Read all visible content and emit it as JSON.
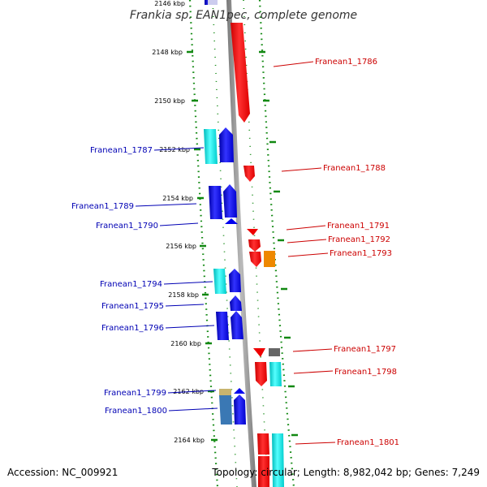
{
  "title": "Frankia sp. EAN1pec, complete genome",
  "accession": "Accession: NC_009921",
  "topology": "Topology: circular; Length: 8,982,042 bp; Genes: 7,249",
  "kbp_labels": [
    "2146 kbp",
    "2148 kbp",
    "2150 kbp",
    "2152 kbp",
    "2154 kbp",
    "2156 kbp",
    "2158 kbp",
    "2160 kbp",
    "2162 kbp",
    "2164 kbp"
  ],
  "colors": {
    "forward_label": "#0000b4",
    "reverse_label": "#cc0000",
    "backbone": "#888888",
    "ticks": "#118811",
    "cds_blue": "#0000ee",
    "cds_cyan": "#00e5e5",
    "cds_red": "#ee0000",
    "cds_orange": "#ee8800",
    "cds_gray": "#666666",
    "cds_tan": "#c8b46e",
    "cds_steel": "#3a78b4"
  },
  "genes_left": [
    {
      "label": "Franean1_1787"
    },
    {
      "label": "Franean1_1789"
    },
    {
      "label": "Franean1_1790"
    },
    {
      "label": "Franean1_1794"
    },
    {
      "label": "Franean1_1795"
    },
    {
      "label": "Franean1_1796"
    },
    {
      "label": "Franean1_1799"
    },
    {
      "label": "Franean1_1800"
    }
  ],
  "genes_right": [
    {
      "label": "Franean1_1786"
    },
    {
      "label": "Franean1_1788"
    },
    {
      "label": "Franean1_1791"
    },
    {
      "label": "Franean1_1792"
    },
    {
      "label": "Franean1_1793"
    },
    {
      "label": "Franean1_1797"
    },
    {
      "label": "Franean1_1798"
    },
    {
      "label": "Franean1_1801"
    }
  ]
}
